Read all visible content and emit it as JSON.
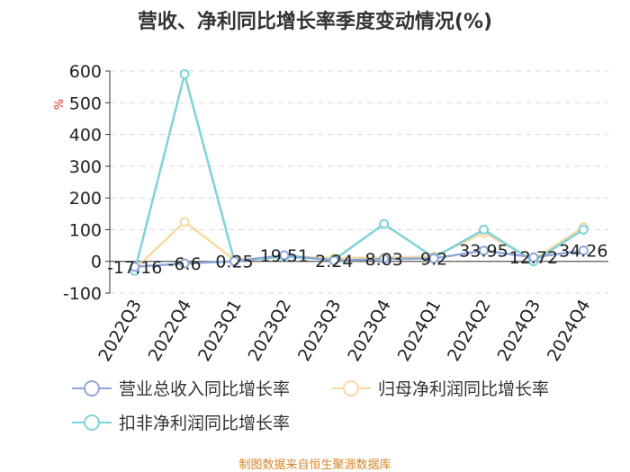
{
  "title": "营收、净利同比增长率季度变动情况(%)",
  "source": "制图数据来自恒生聚源数据库",
  "chart_data": {
    "type": "line",
    "ylabel": "%",
    "ylim": [
      -100,
      600
    ],
    "yticks": [
      -100,
      0,
      100,
      200,
      300,
      400,
      500,
      600
    ],
    "categories": [
      "2022Q3",
      "2022Q4",
      "2023Q1",
      "2023Q2",
      "2023Q3",
      "2023Q4",
      "2024Q1",
      "2024Q2",
      "2024Q3",
      "2024Q4"
    ],
    "series": [
      {
        "name": "营业总收入同比增长率",
        "color": "#8fa8d8",
        "values": [
          -17.16,
          -6.6,
          0.25,
          19.51,
          2.24,
          8.03,
          9.2,
          33.95,
          12.72,
          34.26
        ],
        "labels": [
          "-17.16",
          "-6.6",
          "0.25",
          "19.51",
          "2.24",
          "8.03",
          "9.2",
          "33.95",
          "12.72",
          "34.26"
        ]
      },
      {
        "name": "归母净利润同比增长率",
        "color": "#f7d9a3",
        "values": [
          -25,
          125,
          5,
          15,
          10,
          12,
          15,
          90,
          5,
          108
        ]
      },
      {
        "name": "扣非净利润同比增长率",
        "color": "#7fd3d8",
        "values": [
          -30,
          590,
          0,
          15,
          5,
          118,
          12,
          100,
          0,
          100
        ]
      }
    ]
  }
}
